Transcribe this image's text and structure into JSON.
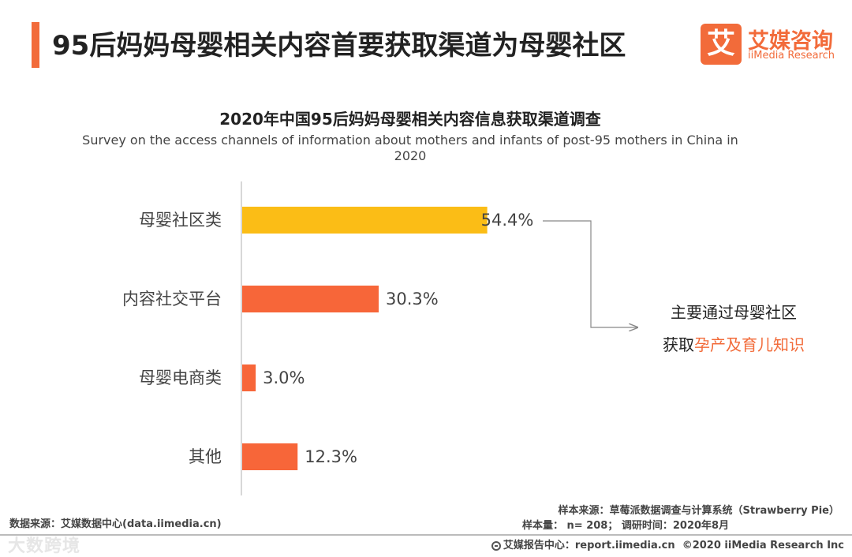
{
  "header": {
    "title": "95后妈妈母婴相关内容首要获取渠道为母婴社区",
    "logo_mark": "艾",
    "logo_cn": "艾媒咨询",
    "logo_en": "iiMedia Research"
  },
  "chart_data": {
    "type": "bar",
    "orientation": "horizontal",
    "title": "2020年中国95后妈妈母婴相关内容信息获取渠道调查",
    "subtitle": "Survey on the access channels of information about mothers and infants of post-95 mothers in China in 2020",
    "categories": [
      "母婴社区类",
      "内容社交平台",
      "母婴电商类",
      "其他"
    ],
    "values": [
      54.4,
      30.3,
      3.0,
      12.3
    ],
    "value_labels": [
      "54.4%",
      "30.3%",
      "3.0%",
      "12.3%"
    ],
    "bar_colors": [
      "#fbbd16",
      "#f76639",
      "#f76639",
      "#f76639"
    ],
    "xlim": [
      0,
      100
    ],
    "unit": "%",
    "grid": false,
    "legend": "none"
  },
  "callout": {
    "line1": "主要通过母婴社区",
    "line2_prefix": "获取",
    "line2_highlight": "孕产及育儿知识"
  },
  "footer": {
    "source": "数据来源：艾媒数据中心(data.iimedia.cn)",
    "sample_source": "样本来源：草莓派数据调查与计算系统（Strawberry Pie）",
    "sample_size": "样本量： n= 208； 调研时间：2020年8月",
    "report_center": "艾媒报告中心：report.iimedia.cn",
    "copyright": "©2020  iiMedia Research  Inc",
    "watermark": "大数跨境"
  },
  "colors": {
    "accent": "#f26b3a",
    "highlight_bar": "#fbbd16",
    "bar": "#f76639"
  }
}
